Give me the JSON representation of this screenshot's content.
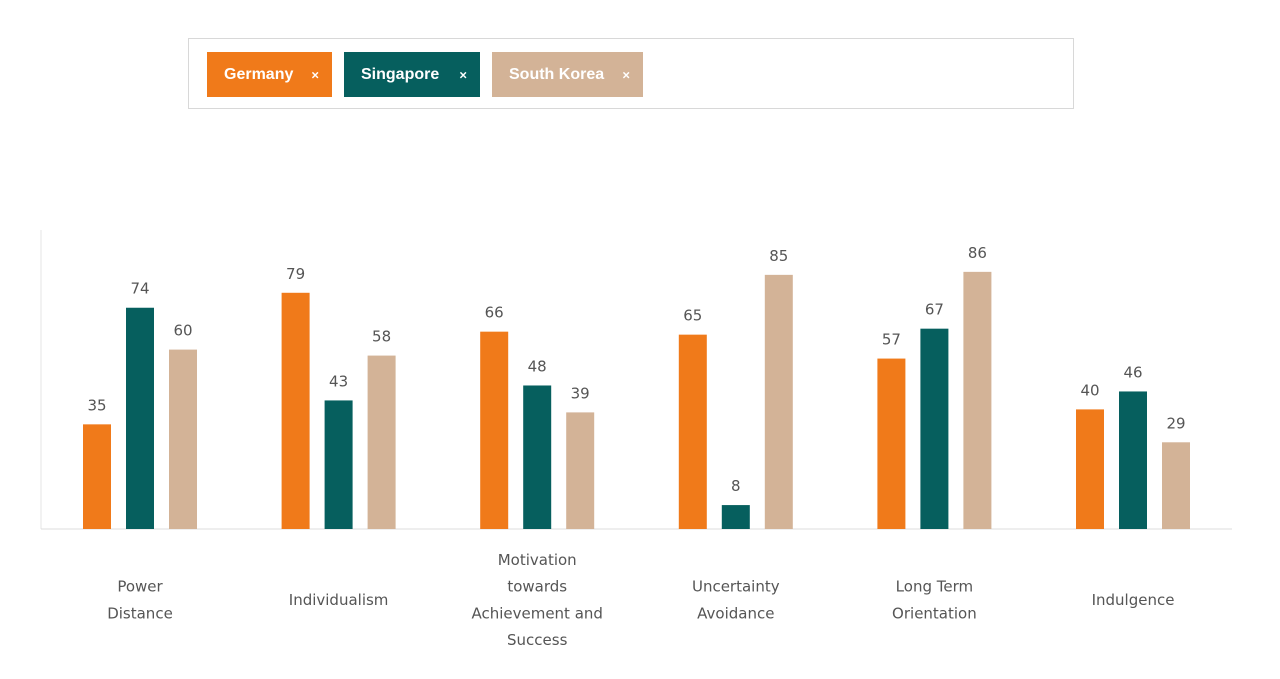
{
  "filters": {
    "chips": [
      {
        "label": "Germany",
        "close_symbol": "×",
        "color": "#f07a1a"
      },
      {
        "label": "Singapore",
        "close_symbol": "×",
        "color": "#065f5e"
      },
      {
        "label": "South Korea",
        "close_symbol": "×",
        "color": "#d3b397"
      }
    ]
  },
  "chart_data": {
    "type": "bar",
    "categories": [
      [
        "Power",
        "Distance"
      ],
      [
        "Individualism"
      ],
      [
        "Motivation",
        "towards",
        "Achievement and",
        "Success"
      ],
      [
        "Uncertainty",
        "Avoidance"
      ],
      [
        "Long Term",
        "Orientation"
      ],
      [
        "Indulgence"
      ]
    ],
    "series": [
      {
        "name": "Germany",
        "color": "#f07a1a",
        "values": [
          35,
          79,
          66,
          65,
          57,
          40
        ]
      },
      {
        "name": "Singapore",
        "color": "#065f5e",
        "values": [
          74,
          43,
          48,
          8,
          67,
          46
        ]
      },
      {
        "name": "South Korea",
        "color": "#d3b397",
        "values": [
          60,
          58,
          39,
          85,
          86,
          29
        ]
      }
    ],
    "ylim": [
      0,
      100
    ],
    "legend": "top",
    "grid": false,
    "title": "",
    "xlabel": "",
    "ylabel": ""
  }
}
